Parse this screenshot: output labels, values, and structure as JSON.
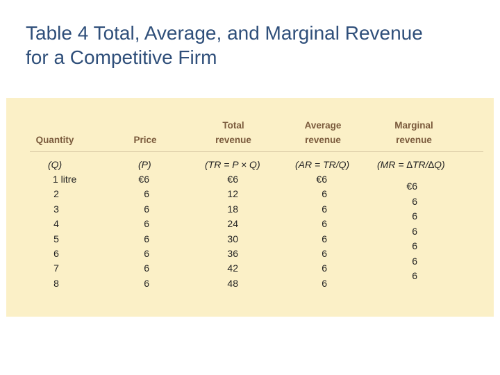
{
  "title": {
    "line1": "Table 4 Total, Average, and Marginal Revenue",
    "line2": "for a Competitive Firm"
  },
  "table": {
    "headers": {
      "quantity": "Quantity",
      "price": "Price",
      "total": [
        "Total",
        "revenue"
      ],
      "average": [
        "Average",
        "revenue"
      ],
      "marginal": [
        "Marginal",
        "revenue"
      ]
    },
    "formulas": {
      "quantity": "(Q)",
      "price": "(P)",
      "total": "(TR = P × Q)",
      "average": "(AR = TR/Q)",
      "marginal": "(MR = ∆TR/∆Q)"
    },
    "quantity": [
      "1 litre",
      "2",
      "3",
      "4",
      "5",
      "6",
      "7",
      "8"
    ],
    "price": [
      "€6",
      "6",
      "6",
      "6",
      "6",
      "6",
      "6",
      "6"
    ],
    "total_revenue": [
      "€6",
      "12",
      "18",
      "24",
      "30",
      "36",
      "42",
      "48"
    ],
    "average_revenue": [
      "€6",
      "6",
      "6",
      "6",
      "6",
      "6",
      "6",
      "6"
    ],
    "marginal_revenue": [
      "€6",
      "6",
      "6",
      "6",
      "6",
      "6",
      "6"
    ]
  }
}
